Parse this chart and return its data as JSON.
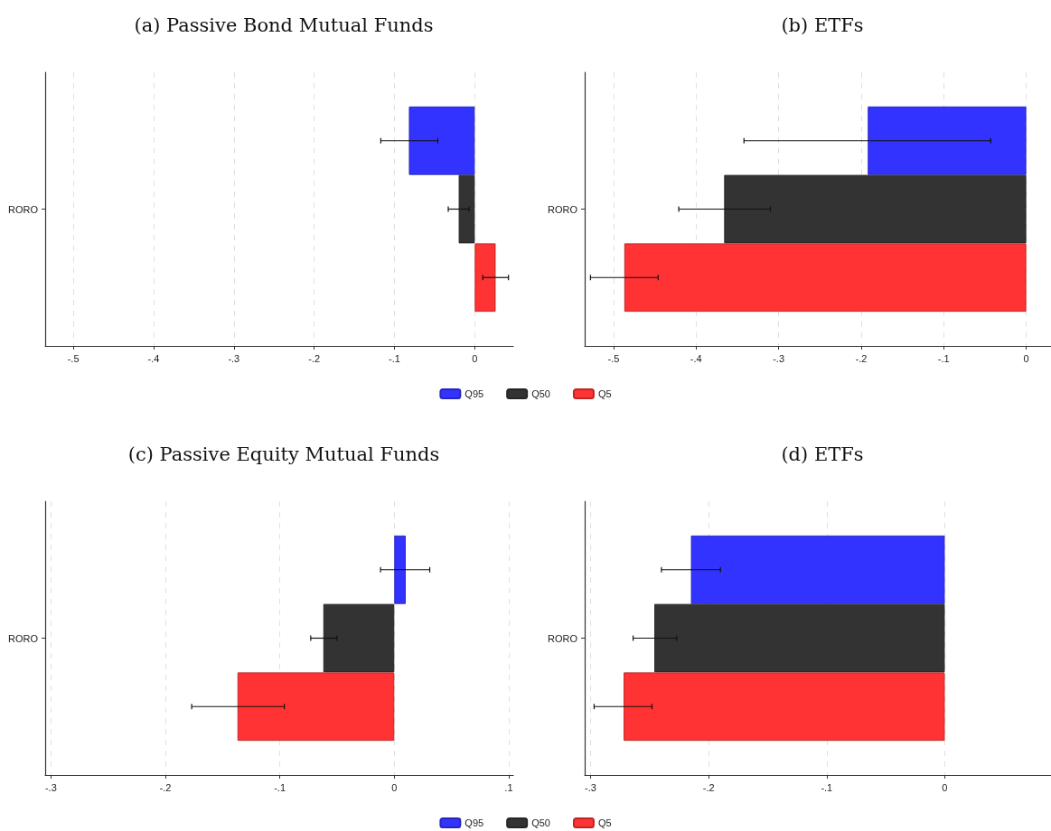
{
  "chart_data": [
    {
      "type": "bar",
      "orientation": "horizontal",
      "title": "(a) Passive Bond Mutual Funds",
      "categories": [
        "RORO"
      ],
      "xlim": [
        -0.535,
        0.048
      ],
      "xticks": [
        {
          "value": -0.5,
          "label": "-.5"
        },
        {
          "value": -0.4,
          "label": "-.4"
        },
        {
          "value": -0.3,
          "label": "-.3"
        },
        {
          "value": -0.2,
          "label": "-.2"
        },
        {
          "value": -0.1,
          "label": "-.1"
        },
        {
          "value": 0,
          "label": "0"
        }
      ],
      "grid": "x",
      "legend": "bottom",
      "series": [
        {
          "name": "Q95",
          "color": "#3333ff",
          "values": [
            -0.082
          ],
          "errors": [
            [
              -0.117,
              -0.046
            ]
          ]
        },
        {
          "name": "Q50",
          "color": "#333333",
          "values": [
            -0.02
          ],
          "errors": [
            [
              -0.033,
              -0.007
            ]
          ]
        },
        {
          "name": "Q5",
          "color": "#ff3333",
          "values": [
            0.026
          ],
          "errors": [
            [
              0.01,
              0.042
            ]
          ]
        }
      ]
    },
    {
      "type": "bar",
      "orientation": "horizontal",
      "title": "(b) ETFs",
      "categories": [
        "RORO"
      ],
      "xlim": [
        -0.535,
        0.03
      ],
      "xticks": [
        {
          "value": -0.5,
          "label": "-.5"
        },
        {
          "value": -0.4,
          "label": "-.4"
        },
        {
          "value": -0.3,
          "label": "-.3"
        },
        {
          "value": -0.2,
          "label": "-.2"
        },
        {
          "value": -0.1,
          "label": "-.1"
        },
        {
          "value": 0,
          "label": "0"
        }
      ],
      "grid": "x",
      "series": [
        {
          "color": "#3333ff",
          "values": [
            -0.192
          ],
          "errors": [
            [
              -0.342,
              -0.043
            ]
          ]
        },
        {
          "color": "#333333",
          "values": [
            -0.366
          ],
          "errors": [
            [
              -0.421,
              -0.31
            ]
          ]
        },
        {
          "color": "#ff3333",
          "values": [
            -0.487
          ],
          "errors": [
            [
              -0.528,
              -0.446
            ]
          ]
        }
      ]
    },
    {
      "type": "bar",
      "orientation": "horizontal",
      "title": "(c) Passive Equity Mutual Funds",
      "categories": [
        "RORO"
      ],
      "xlim": [
        -0.305,
        0.104
      ],
      "xticks": [
        {
          "value": -0.3,
          "label": "-.3"
        },
        {
          "value": -0.2,
          "label": "-.2"
        },
        {
          "value": -0.1,
          "label": "-.1"
        },
        {
          "value": 0,
          "label": "0"
        },
        {
          "value": 0.1,
          "label": ".1"
        }
      ],
      "grid": "x",
      "legend": "bottom",
      "series": [
        {
          "name": "Q95",
          "color": "#3333ff",
          "values": [
            0.01
          ],
          "errors": [
            [
              -0.012,
              0.031
            ]
          ]
        },
        {
          "name": "Q50",
          "color": "#333333",
          "values": [
            -0.062
          ],
          "errors": [
            [
              -0.073,
              -0.05
            ]
          ]
        },
        {
          "name": "Q5",
          "color": "#ff3333",
          "values": [
            -0.137
          ],
          "errors": [
            [
              -0.177,
              -0.096
            ]
          ]
        }
      ]
    },
    {
      "type": "bar",
      "orientation": "horizontal",
      "title": "(d) ETFs",
      "categories": [
        "RORO"
      ],
      "xlim": [
        -0.305,
        0.09
      ],
      "xticks": [
        {
          "value": -0.3,
          "label": "-.3"
        },
        {
          "value": -0.2,
          "label": "-.2"
        },
        {
          "value": -0.1,
          "label": "-.1"
        },
        {
          "value": 0,
          "label": "0"
        }
      ],
      "grid": "x",
      "series": [
        {
          "color": "#3333ff",
          "values": [
            -0.215
          ],
          "errors": [
            [
              -0.24,
              -0.19
            ]
          ]
        },
        {
          "color": "#333333",
          "values": [
            -0.246
          ],
          "errors": [
            [
              -0.264,
              -0.227
            ]
          ]
        },
        {
          "color": "#ff3333",
          "values": [
            -0.272
          ],
          "errors": [
            [
              -0.297,
              -0.248
            ]
          ]
        }
      ]
    }
  ]
}
